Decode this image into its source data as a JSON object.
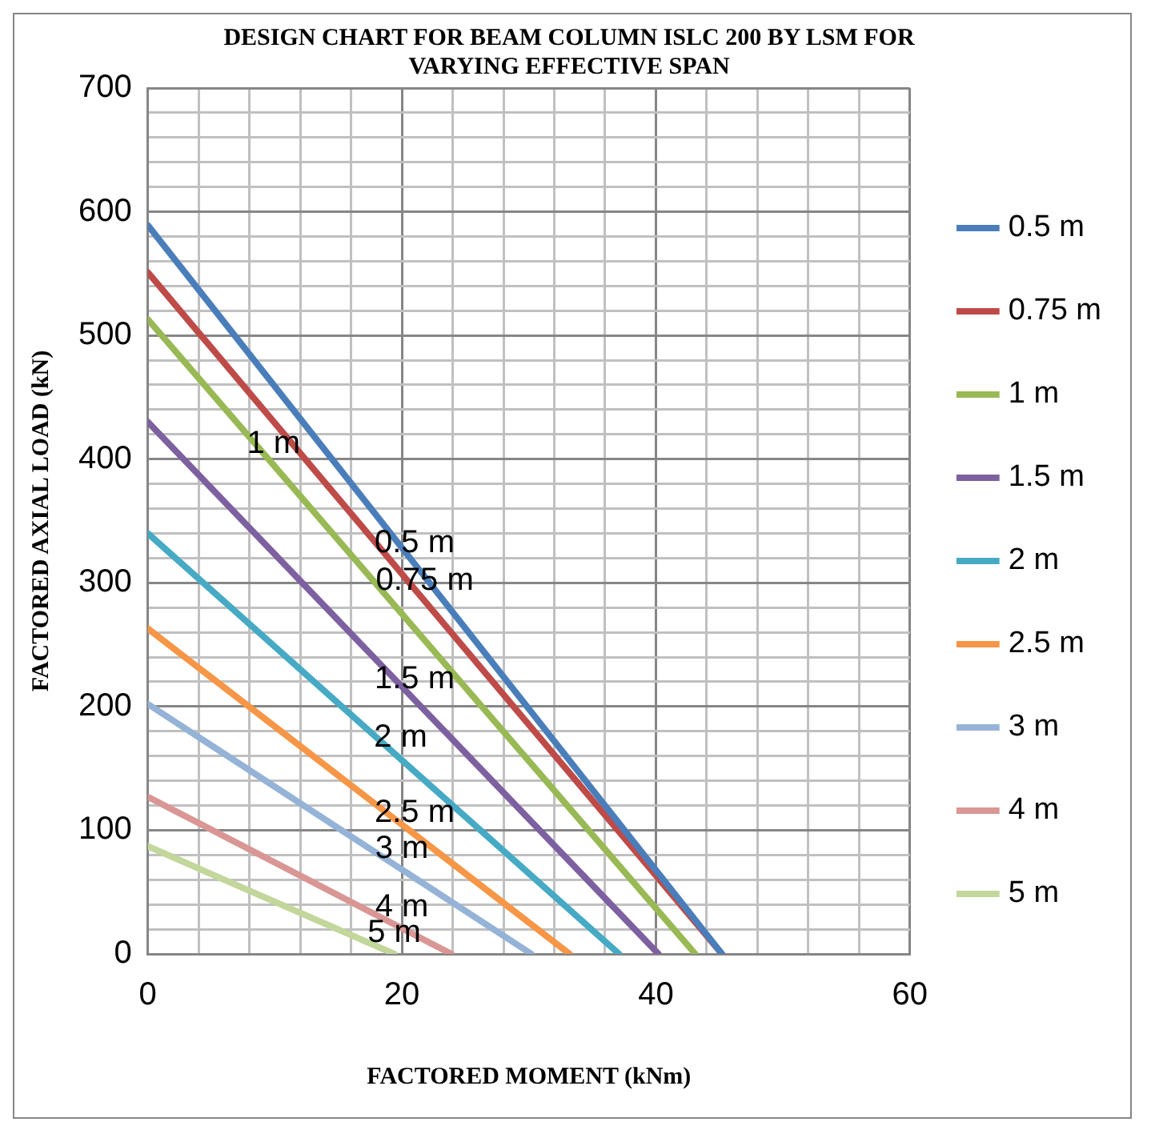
{
  "chart_data": {
    "type": "line",
    "title": "DESIGN CHART FOR BEAM COLUMN ISLC 200 BY LSM FOR VARYING EFFECTIVE SPAN",
    "xlabel": "FACTORED MOMENT (kNm)",
    "ylabel": "FACTORED AXIAL LOAD (kN)",
    "xlim": [
      0,
      60
    ],
    "xticks": [
      0,
      {
        "value": 4,
        "label": null
      },
      {
        "value": 8,
        "label": null
      },
      {
        "value": 12,
        "label": null
      },
      {
        "value": 16,
        "label": null
      },
      20,
      {
        "value": 24,
        "label": null
      },
      {
        "value": 28,
        "label": null
      },
      {
        "value": 32,
        "label": null
      },
      {
        "value": 36,
        "label": null
      },
      40,
      {
        "value": 44,
        "label": null
      },
      {
        "value": 48,
        "label": null
      },
      {
        "value": 52,
        "label": null
      },
      {
        "value": 56,
        "label": null
      },
      60
    ],
    "ylim": [
      0,
      700
    ],
    "yticks": [
      0,
      {
        "value": 20,
        "label": null
      },
      {
        "value": 40,
        "label": null
      },
      {
        "value": 60,
        "label": null
      },
      {
        "value": 80,
        "label": null
      },
      100,
      {
        "value": 120,
        "label": null
      },
      {
        "value": 140,
        "label": null
      },
      {
        "value": 160,
        "label": null
      },
      {
        "value": 180,
        "label": null
      },
      200,
      {
        "value": 220,
        "label": null
      },
      {
        "value": 240,
        "label": null
      },
      {
        "value": 260,
        "label": null
      },
      {
        "value": 280,
        "label": null
      },
      300,
      {
        "value": 320,
        "label": null
      },
      {
        "value": 340,
        "label": null
      },
      {
        "value": 360,
        "label": null
      },
      {
        "value": 380,
        "label": null
      },
      400,
      {
        "value": 420,
        "label": null
      },
      {
        "value": 440,
        "label": null
      },
      {
        "value": 460,
        "label": null
      },
      {
        "value": 480,
        "label": null
      },
      500,
      {
        "value": 520,
        "label": null
      },
      {
        "value": 540,
        "label": null
      },
      {
        "value": 560,
        "label": null
      },
      {
        "value": 580,
        "label": null
      },
      600,
      {
        "value": 620,
        "label": null
      },
      {
        "value": 640,
        "label": null
      },
      {
        "value": 660,
        "label": null
      },
      {
        "value": 680,
        "label": null
      },
      700
    ],
    "grid": true,
    "legend": "right",
    "marker": "none",
    "line_style": "solid",
    "series": [
      {
        "name": "0.5 m",
        "color": "#4a7ebb",
        "x": [
          0,
          45.2
        ],
        "values": [
          589,
          0
        ]
      },
      {
        "name": "0.75 m",
        "color": "#be4b48",
        "x": [
          0,
          45.2
        ],
        "values": [
          551,
          0
        ]
      },
      {
        "name": "1 m",
        "color": "#98b954",
        "x": [
          0,
          43.1
        ],
        "values": [
          513,
          0
        ]
      },
      {
        "name": "1.5 m",
        "color": "#7d60a0",
        "x": [
          0,
          40.2
        ],
        "values": [
          430,
          0
        ]
      },
      {
        "name": "2 m",
        "color": "#46aac5",
        "x": [
          0,
          37.1
        ],
        "values": [
          340,
          0
        ]
      },
      {
        "name": "2.5 m",
        "color": "#f69646",
        "x": [
          0,
          33.2
        ],
        "values": [
          263,
          0
        ]
      },
      {
        "name": "3 m",
        "color": "#95b3d7",
        "x": [
          0,
          30.2
        ],
        "values": [
          202,
          0
        ]
      },
      {
        "name": "4 m",
        "color": "#d99694",
        "x": [
          0,
          23.9
        ],
        "values": [
          127,
          0
        ]
      },
      {
        "name": "5 m",
        "color": "#c3d69b",
        "x": [
          0,
          19.4
        ],
        "values": [
          87,
          0
        ]
      }
    ],
    "annotations": [
      {
        "text": "1 m",
        "x": 9.9,
        "y": 395
      },
      {
        "text": "0.5 m",
        "x": 21,
        "y": 315
      },
      {
        "text": "0.75 m",
        "x": 21.8,
        "y": 285
      },
      {
        "text": "1.5 m",
        "x": 21,
        "y": 205
      },
      {
        "text": "2 m",
        "x": 19.9,
        "y": 158
      },
      {
        "text": "2.5 m",
        "x": 21,
        "y": 97
      },
      {
        "text": "3 m",
        "x": 20,
        "y": 68
      },
      {
        "text": "4 m",
        "x": 20,
        "y": 21
      },
      {
        "text": "5 m",
        "x": 19.4,
        "y": 0
      }
    ]
  }
}
